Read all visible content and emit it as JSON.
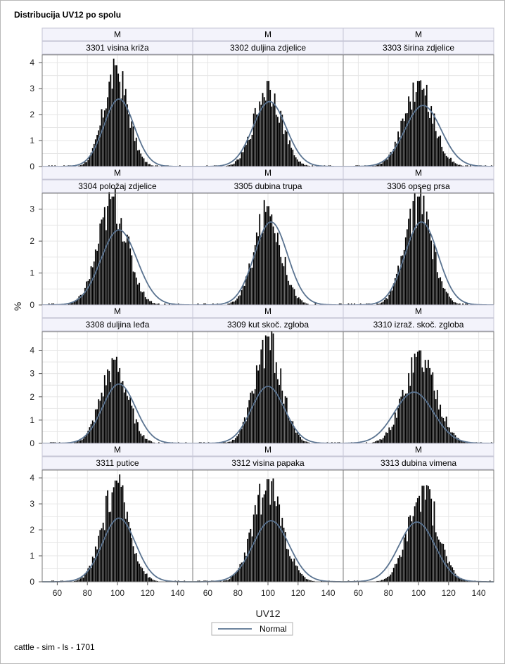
{
  "title": "Distribucija UV12 po spolu",
  "footer": "cattle - sim - ls - 1701",
  "chart_data": {
    "type": "bar",
    "subtype": "histogram-panel-grid",
    "xlabel": "UV12",
    "ylabel": "%",
    "xlim": [
      50,
      150
    ],
    "xticks": [
      60,
      80,
      100,
      120,
      140
    ],
    "legend": {
      "entries": [
        "Normal"
      ],
      "placement": "bottom-center"
    },
    "grid": true,
    "rows": [
      {
        "ylim": [
          0,
          4.3
        ],
        "yticks": [
          0,
          1,
          2,
          3,
          4
        ]
      },
      {
        "ylim": [
          0,
          3.5
        ],
        "yticks": [
          0,
          1,
          2,
          3
        ]
      },
      {
        "ylim": [
          0,
          4.8
        ],
        "yticks": [
          0,
          1,
          2,
          3,
          4
        ]
      },
      {
        "ylim": [
          0,
          4.3
        ],
        "yticks": [
          0,
          1,
          2,
          3,
          4
        ]
      }
    ],
    "panels": [
      {
        "sex": "M",
        "trait": "3301 visina križa",
        "peak": 3.9,
        "peak_x": 99,
        "normal_mean": 101,
        "normal_sd": 10,
        "normal_peak": 2.6
      },
      {
        "sex": "M",
        "trait": "3302 duljina zdjelice",
        "peak": 3.3,
        "peak_x": 100,
        "normal_mean": 101,
        "normal_sd": 11,
        "normal_peak": 2.5
      },
      {
        "sex": "M",
        "trait": "3303 širina zdjelice",
        "peak": 3.3,
        "peak_x": 100,
        "normal_mean": 103,
        "normal_sd": 12,
        "normal_peak": 2.35
      },
      {
        "sex": "M",
        "trait": "3304 položaj zdjelice",
        "peak": 3.4,
        "peak_x": 97,
        "normal_mean": 101,
        "normal_sd": 12,
        "normal_peak": 2.35
      },
      {
        "sex": "M",
        "trait": "3305 dubina trupa",
        "peak": 3.1,
        "peak_x": 100,
        "normal_mean": 102,
        "normal_sd": 11,
        "normal_peak": 2.6
      },
      {
        "sex": "M",
        "trait": "3306 opseg prsa",
        "peak": 3.4,
        "peak_x": 100,
        "normal_mean": 102,
        "normal_sd": 11,
        "normal_peak": 2.6
      },
      {
        "sex": "M",
        "trait": "3308 duljina leđa",
        "peak": 3.6,
        "peak_x": 98,
        "normal_mean": 101,
        "normal_sd": 11,
        "normal_peak": 2.55
      },
      {
        "sex": "M",
        "trait": "3309 kut skoč. zgloba",
        "peak": 4.6,
        "peak_x": 100,
        "normal_mean": 100,
        "normal_sd": 11,
        "normal_peak": 2.45
      },
      {
        "sex": "M",
        "trait": "3310 izraž. skoč. zgloba",
        "peak": 4.0,
        "peak_x": 101,
        "normal_mean": 97,
        "normal_sd": 13,
        "normal_peak": 2.2
      },
      {
        "sex": "M",
        "trait": "3311 putice",
        "peak": 3.9,
        "peak_x": 99,
        "normal_mean": 101,
        "normal_sd": 11,
        "normal_peak": 2.45
      },
      {
        "sex": "M",
        "trait": "3312 visina papaka",
        "peak": 3.95,
        "peak_x": 100,
        "normal_mean": 102,
        "normal_sd": 12,
        "normal_peak": 2.35
      },
      {
        "sex": "M",
        "trait": "3313 dubina vimena",
        "peak": 3.7,
        "peak_x": 103,
        "normal_mean": 99,
        "normal_sd": 12,
        "normal_peak": 2.3
      }
    ]
  },
  "colors": {
    "bars": "#000000",
    "normal_curve": "#5a7390",
    "grid": "#e6e6e6",
    "strip_bg": "#f3f3fb",
    "border": "#7a7a7a"
  }
}
